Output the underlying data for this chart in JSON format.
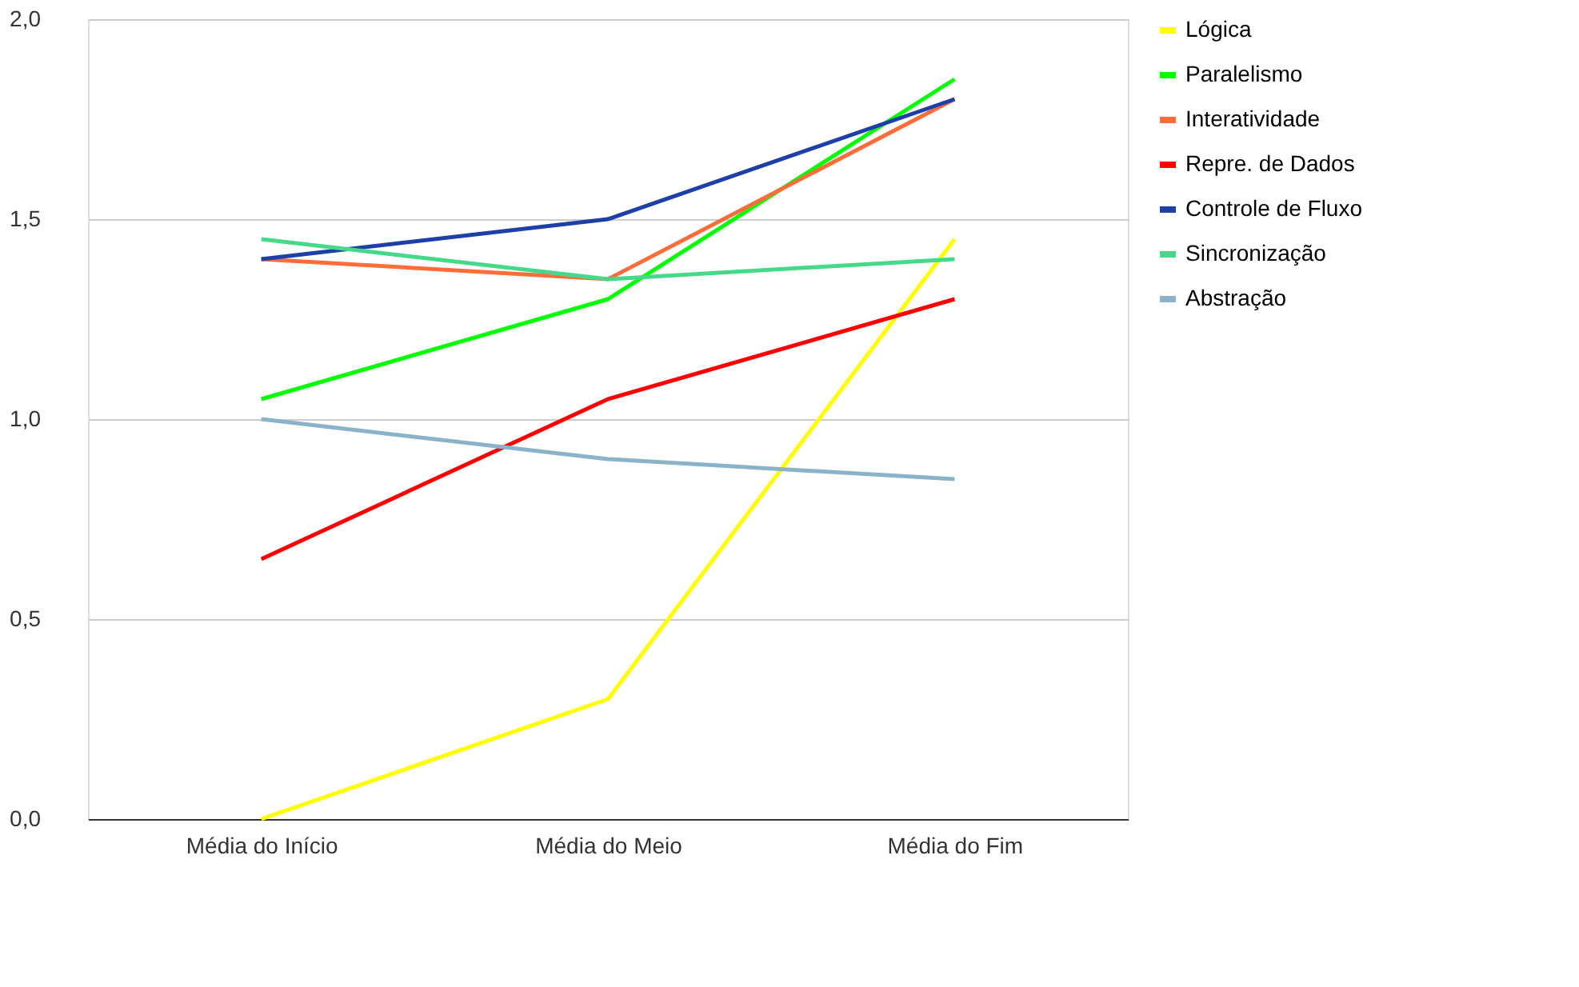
{
  "chart_data": {
    "type": "line",
    "categories": [
      "Média do Início",
      "Média do Meio",
      "Média do Fim"
    ],
    "ylim": [
      0,
      2
    ],
    "yticks": [
      {
        "value": 0,
        "label": "0,0"
      },
      {
        "value": 0.5,
        "label": "0,5"
      },
      {
        "value": 1,
        "label": "1,0"
      },
      {
        "value": 1.5,
        "label": "1,5"
      },
      {
        "value": 2,
        "label": "2,0"
      }
    ],
    "grid": "y",
    "legend": "right",
    "marker": "none",
    "line_style": "solid",
    "series": [
      {
        "name": "Lógica",
        "color": "#ffff00",
        "values": [
          0,
          0.3,
          1.45
        ]
      },
      {
        "name": "Paralelismo",
        "color": "#00ff00",
        "values": [
          1.05,
          1.3,
          1.85
        ]
      },
      {
        "name": "Interatividade",
        "color": "#ff6d3a",
        "values": [
          1.4,
          1.35,
          1.8
        ]
      },
      {
        "name": "Repre. de Dados",
        "color": "#ff0000",
        "values": [
          0.65,
          1.05,
          1.3
        ]
      },
      {
        "name": "Controle de Fluxo",
        "color": "#1c3fa8",
        "values": [
          1.4,
          1.5,
          1.8
        ]
      },
      {
        "name": "Sincronização",
        "color": "#46d98a",
        "values": [
          1.45,
          1.35,
          1.4
        ]
      },
      {
        "name": "Abstração",
        "color": "#8ab3c9",
        "values": [
          1.0,
          0.9,
          0.85
        ]
      }
    ]
  }
}
